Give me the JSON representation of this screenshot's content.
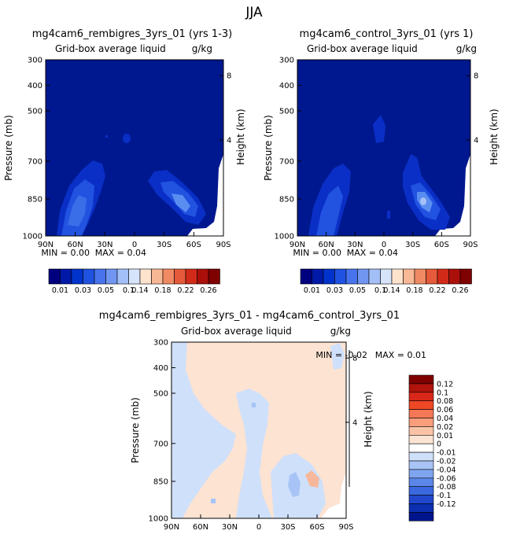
{
  "figure_title": "JJA",
  "panels": [
    {
      "id": "left",
      "title": "mg4cam6_rembigres_3yrs_01 (yrs 1-3)",
      "subtitle_left": "Grid-box average liquid",
      "subtitle_right": "g/kg",
      "ylabel": "Pressure (mb)",
      "ylabel_right": "Height (km)",
      "stats": {
        "min_label": "MIN =",
        "min": "0.00",
        "max_label": "MAX =",
        "max": "0.04"
      }
    },
    {
      "id": "right",
      "title": "mg4cam6_control_3yrs_01 (yrs 1)",
      "subtitle_left": "Grid-box average liquid",
      "subtitle_right": "g/kg",
      "ylabel": "Pressure (mb)",
      "ylabel_right": "Height (km)",
      "stats": {
        "min_label": "MIN =",
        "min": "0.00",
        "max_label": "MAX =",
        "max": "0.04"
      }
    },
    {
      "id": "diff",
      "title": "mg4cam6_rembigres_3yrs_01 - mg4cam6_control_3yrs_01",
      "subtitle_left": "Grid-box average liquid",
      "subtitle_right": "g/kg",
      "ylabel": "Pressure (mb)",
      "ylabel_right": "Height (km)",
      "stats": {
        "min_label": "MIN =",
        "min": "-0.02",
        "max_label": "MAX =",
        "max": "0.01"
      }
    }
  ],
  "chart_data": [
    {
      "type": "heatmap",
      "title": "mg4cam6_rembigres_3yrs_01 (yrs 1-3)",
      "xlabel": "",
      "ylabel": "Pressure (mb)",
      "y2label": "Height (km)",
      "x_ticks": [
        "90N",
        "60N",
        "30N",
        "0",
        "30S",
        "60S",
        "90S"
      ],
      "y_ticks": [
        "300",
        "400",
        "500",
        "700",
        "850",
        "1000"
      ],
      "y2_ticks": [
        "8",
        "4"
      ],
      "min": 0.0,
      "max": 0.04
    },
    {
      "type": "heatmap",
      "title": "mg4cam6_control_3yrs_01 (yrs 1)",
      "xlabel": "",
      "ylabel": "Pressure (mb)",
      "y2label": "Height (km)",
      "x_ticks": [
        "90N",
        "60N",
        "30N",
        "0",
        "30S",
        "60S",
        "90S"
      ],
      "y_ticks": [
        "300",
        "400",
        "500",
        "700",
        "850",
        "1000"
      ],
      "y2_ticks": [
        "8",
        "4"
      ],
      "min": 0.0,
      "max": 0.04
    },
    {
      "type": "heatmap",
      "title": "mg4cam6_rembigres_3yrs_01 - mg4cam6_control_3yrs_01",
      "xlabel": "",
      "ylabel": "Pressure (mb)",
      "y2label": "Height (km)",
      "x_ticks": [
        "90N",
        "60N",
        "30N",
        "0",
        "30S",
        "60S",
        "90S"
      ],
      "y_ticks": [
        "300",
        "400",
        "500",
        "700",
        "850",
        "1000"
      ],
      "y2_ticks": [
        "8",
        "4"
      ],
      "min": -0.02,
      "max": 0.01
    }
  ],
  "colorbar_abs": {
    "colors": [
      "#00007f",
      "#0019a7",
      "#0033cc",
      "#1f52e0",
      "#4773ec",
      "#7196f2",
      "#a3bff7",
      "#d6e4fb",
      "#fde2cc",
      "#f8b896",
      "#f08a64",
      "#e55a3a",
      "#d22a18",
      "#ab0f0a",
      "#7e0000"
    ],
    "labels": [
      "0.01",
      "0.03",
      "0.05",
      "0.1",
      "0.14",
      "0.18",
      "0.22",
      "0.26"
    ]
  },
  "colorbar_diff": {
    "colors": [
      "#7e0000",
      "#b0140d",
      "#d9281a",
      "#ee4826",
      "#f47756",
      "#f89e7b",
      "#fbc3a6",
      "#fde3d2",
      "#ffffff",
      "#cfe0fa",
      "#a8c4f6",
      "#7fa5ef",
      "#5a87e8",
      "#3a68df",
      "#2148cc",
      "#0b2fb0",
      "#00148c"
    ],
    "labels": [
      "0.12",
      "0.1",
      "0.08",
      "0.06",
      "0.04",
      "0.02",
      "0.01",
      "0",
      "-0.01",
      "-0.02",
      "-0.04",
      "-0.06",
      "-0.08",
      "-0.1",
      "-0.12"
    ]
  },
  "colors": {
    "field_base": "#00188f",
    "blue_level_1": "#0a2fc6",
    "blue_level_2": "#2152e0",
    "blue_level_3": "#5a8df0",
    "blue_level_4": "#a3c0f7",
    "diff_positive": "#fde3d2",
    "diff_negative": "#cfe0fa",
    "diff_neg_2": "#a8c4f6",
    "diff_pos_2": "#f7b79a"
  }
}
